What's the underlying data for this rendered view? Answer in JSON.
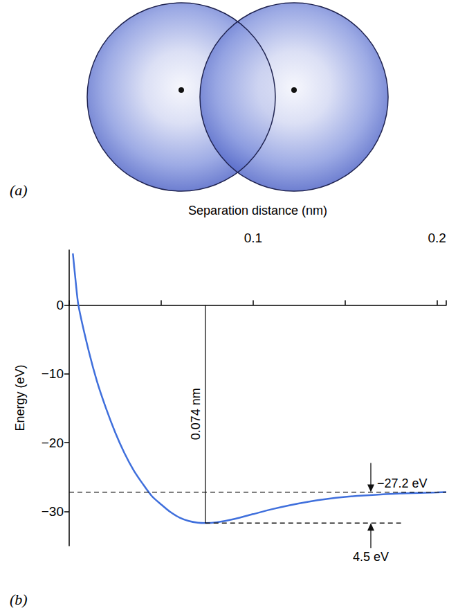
{
  "panel_a": {
    "label": "(a)"
  },
  "chart_data": {
    "type": "line",
    "panel_label": "(b)",
    "xlabel": "Separation distance (nm)",
    "ylabel": "Energy (eV)",
    "x": [
      0.002,
      0.0035,
      0.005,
      0.01,
      0.015,
      0.02,
      0.025,
      0.03,
      0.035,
      0.04,
      0.045,
      0.05,
      0.055,
      0.06,
      0.065,
      0.07,
      0.074,
      0.08,
      0.09,
      0.1,
      0.11,
      0.12,
      0.13,
      0.14,
      0.15,
      0.16,
      0.18,
      0.2,
      0.205
    ],
    "values": [
      7.5,
      3.5,
      0,
      -6,
      -11,
      -15,
      -18.5,
      -21.5,
      -24,
      -26,
      -27.8,
      -29,
      -30.1,
      -30.9,
      -31.4,
      -31.65,
      -31.7,
      -31.6,
      -31.1,
      -30.4,
      -29.7,
      -29.1,
      -28.6,
      -28.2,
      -27.9,
      -27.7,
      -27.4,
      -27.25,
      -27.2
    ],
    "color": "#3f6fdc",
    "xlim": [
      0,
      0.205
    ],
    "ylim": [
      -35,
      8
    ],
    "xticks": [
      0.1,
      0.2
    ],
    "yticks": [
      {
        "value": -30,
        "label": "−30"
      },
      {
        "value": -20,
        "label": "−20"
      },
      {
        "value": -10,
        "label": "−10"
      },
      0
    ],
    "grid": false,
    "annotations": [
      {
        "text": "0.074 nm",
        "x": 0.074,
        "y": -31.7
      },
      {
        "text": "−27.2 eV",
        "y": -27.2
      },
      {
        "text": "4.5 eV",
        "y": [
          -31.7,
          -27.2
        ]
      }
    ]
  }
}
